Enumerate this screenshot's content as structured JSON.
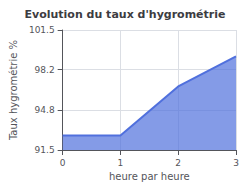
{
  "chart_data": {
    "type": "area",
    "title": "Evolution du taux d'hygrométrie",
    "x_label": "heure par heure",
    "y_label": "Taux hygrométrie %",
    "x": [
      0,
      1,
      2,
      3
    ],
    "values": [
      92.7,
      92.7,
      96.8,
      99.3
    ],
    "xlim": [
      0,
      3
    ],
    "xticks": [
      0,
      1,
      2,
      3
    ],
    "ylim": [
      91.5,
      101.5
    ],
    "yticks": [
      91.5,
      94.8,
      98.2,
      101.5
    ],
    "grid": true
  }
}
